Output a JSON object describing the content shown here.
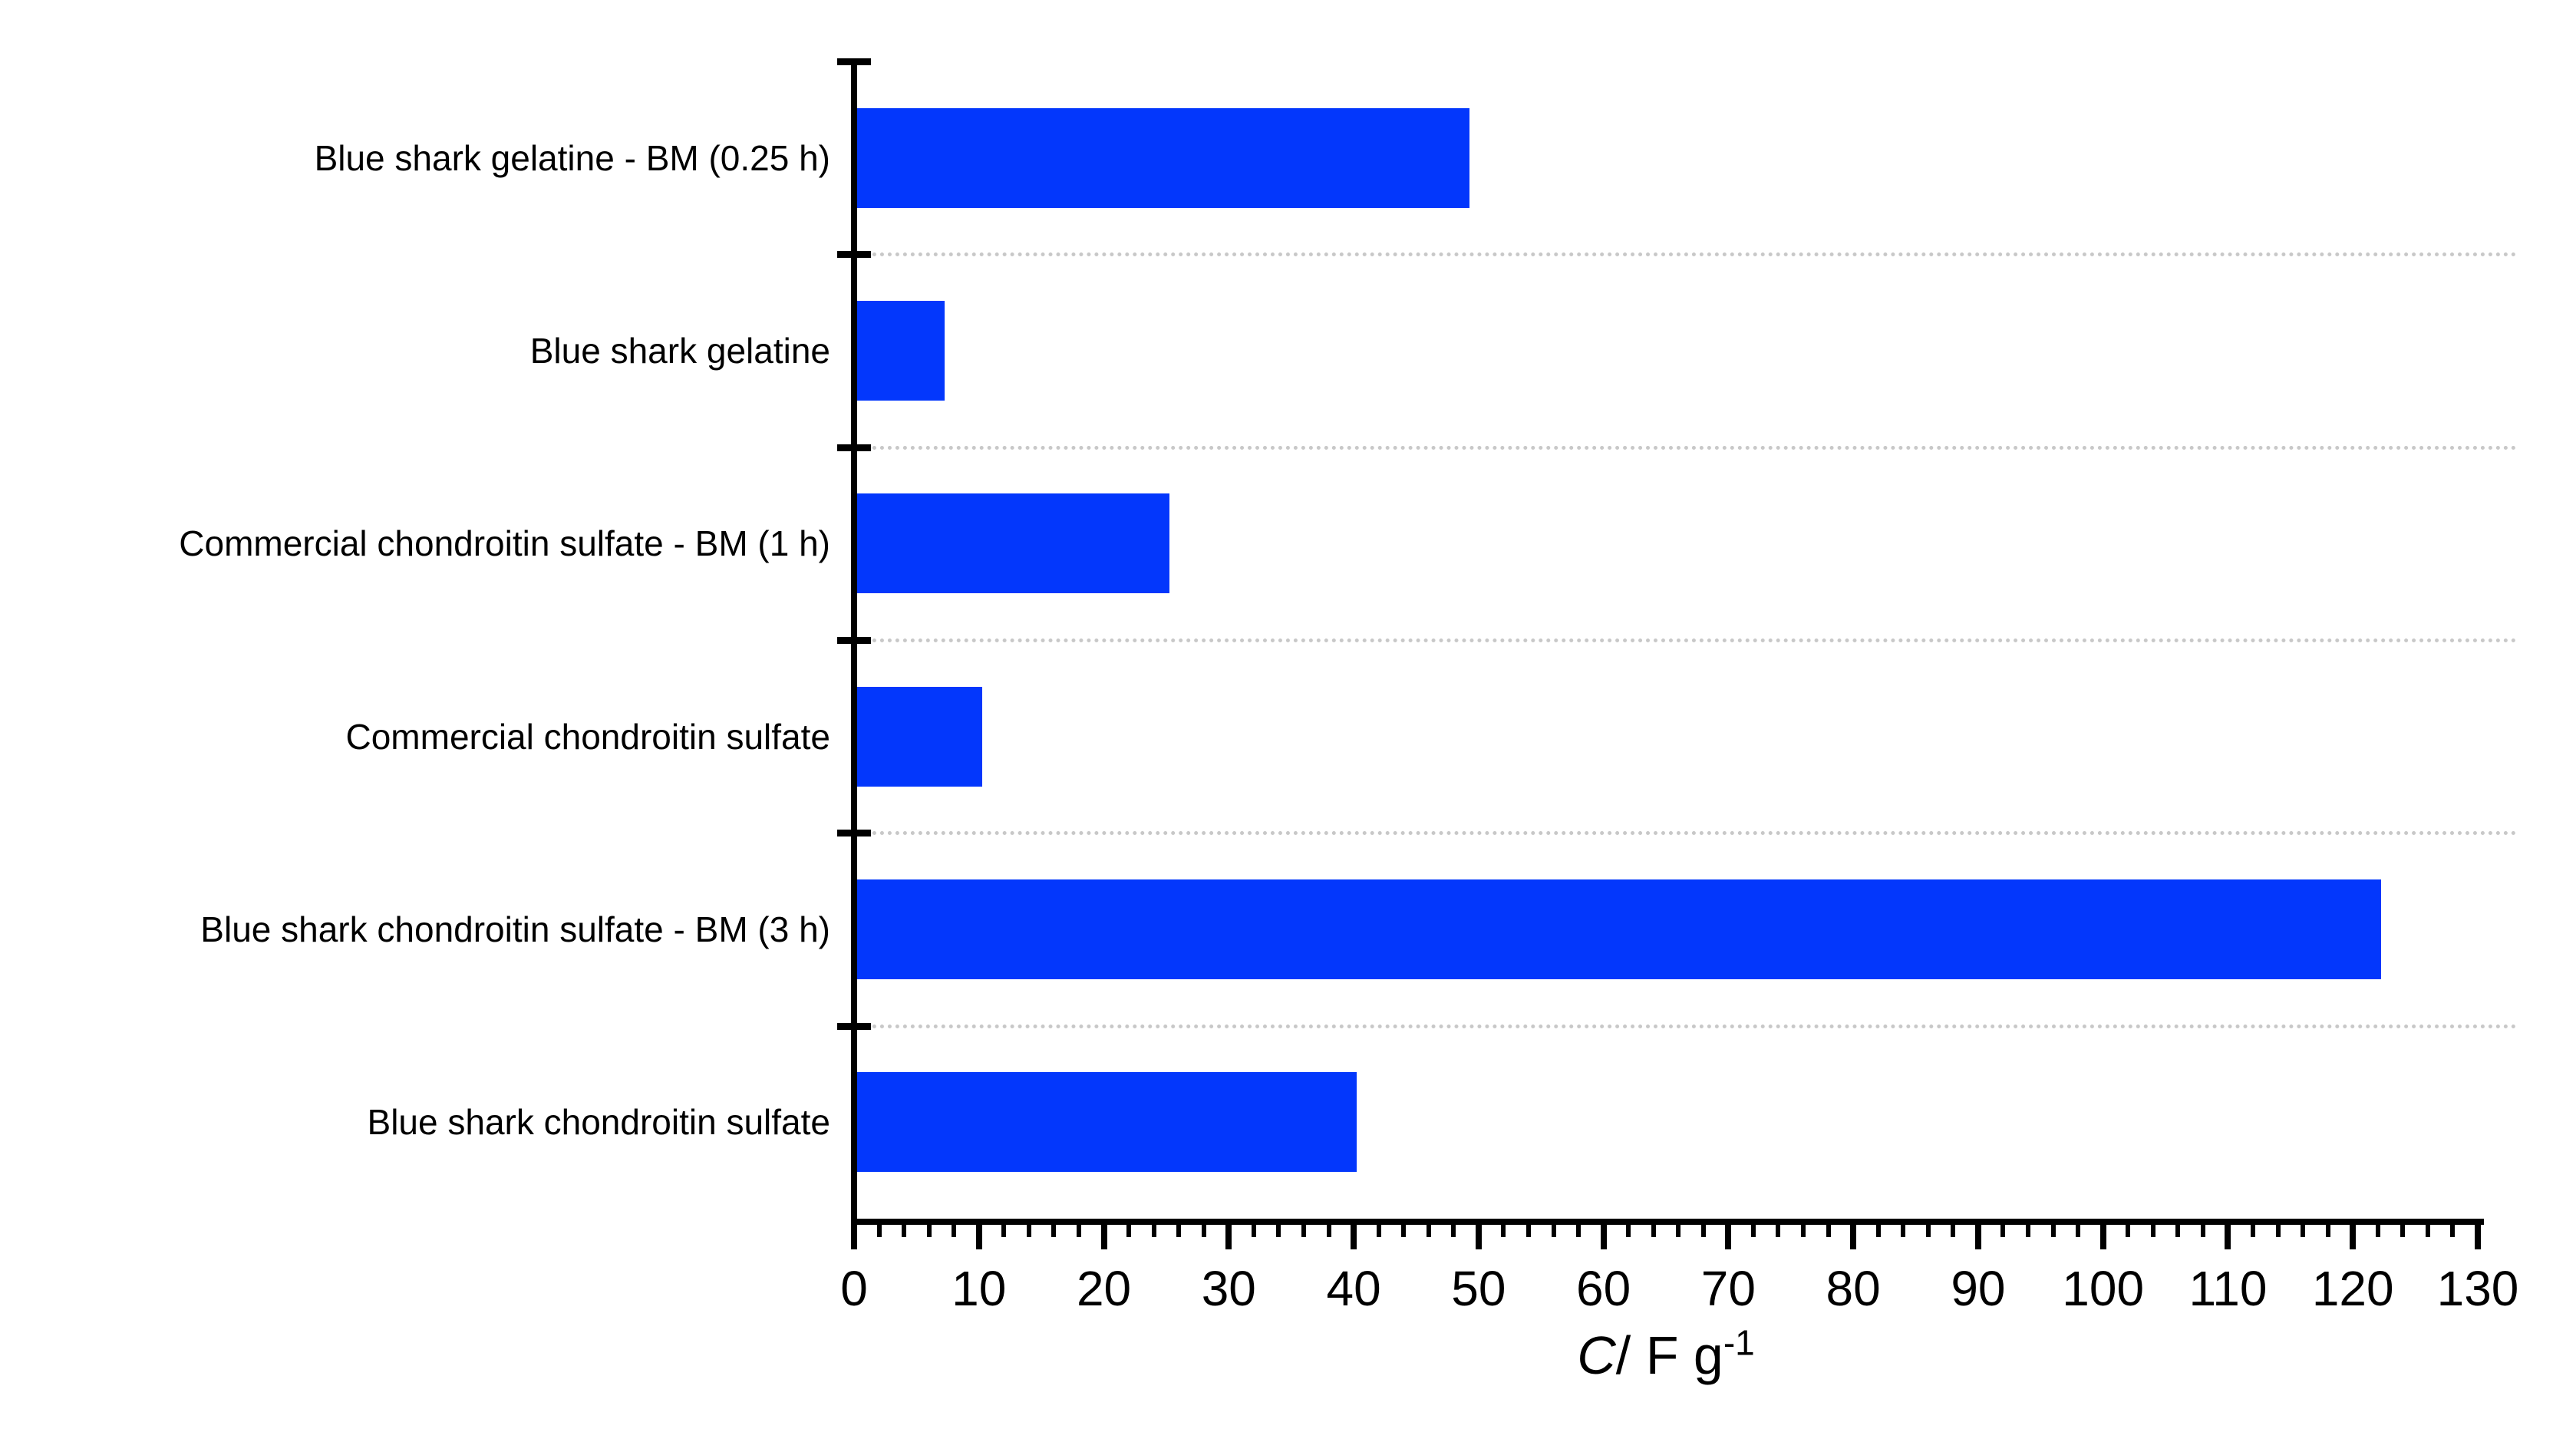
{
  "chart_data": {
    "type": "bar",
    "orientation": "horizontal",
    "title": "",
    "categories": [
      "Blue shark gelatine - BM (0.25 h)",
      "Blue shark gelatine",
      "Commercial chondroitin sulfate - BM (1 h)",
      "Commercial chondroitin sulfate",
      "Blue shark chondroitin sulfate - BM (3 h)",
      "Blue shark chondroitin sulfate"
    ],
    "values": [
      49,
      7,
      25,
      10,
      122,
      40
    ],
    "xlabel": "C/ F g⁻¹",
    "xlabel_parts": {
      "italic": "C",
      "regular": "/ F g",
      "superscript": "-1"
    },
    "ylabel": "",
    "xlim": [
      0,
      130
    ],
    "x_major_tick_step": 10,
    "x_minor_tick_step": 2,
    "x_tick_labels": [
      "0",
      "10",
      "20",
      "30",
      "40",
      "50",
      "60",
      "70",
      "80",
      "90",
      "100",
      "110",
      "120",
      "130"
    ],
    "bar_color": "#0337fc",
    "axis_color": "#000000",
    "gridline_color": "#c8c8c8",
    "gridline_style": "dotted",
    "grid": "horizontal dotted lines at category boundaries",
    "legend": "none",
    "background_color": "#ffffff"
  }
}
